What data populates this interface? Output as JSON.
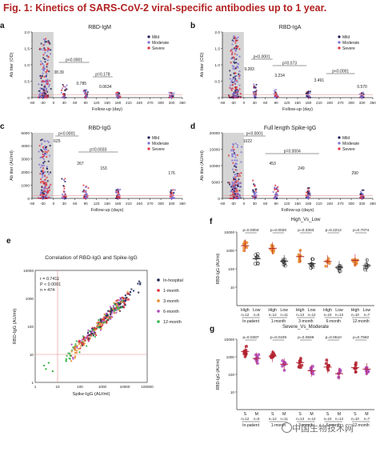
{
  "figure_title": "Fig. 1: Kinetics of SARS-CoV-2 viral-specific antibodies up to 1 year.",
  "watermark": "中国生物技术网",
  "colors": {
    "mild": "#1c1c55",
    "moderate": "#7e6fd6",
    "severe": "#e0303a",
    "shade": "#d5d5d5",
    "accent": "#d85a4a",
    "orange": "#e8882c",
    "purple": "#b24bbd",
    "darkred": "#b3202e",
    "navy": "#222a55",
    "cutoff": "#e88888"
  },
  "chart_data": [
    {
      "panel": "a",
      "type": "scatter",
      "title": "RBD-IgM",
      "xlabel": "Follow-up (day)",
      "ylabel": "Ab titer (OD)",
      "xlim": [
        -60,
        360
      ],
      "ylim": [
        0,
        2.0
      ],
      "xticks": [
        -60,
        -30,
        0,
        30,
        60,
        90,
        120,
        150,
        180,
        210,
        240,
        270,
        300,
        330,
        360
      ],
      "yticks": [
        0,
        0.5,
        1.0,
        1.5,
        2.0
      ],
      "ytick_labels": [
        "0",
        "0.5",
        "1.0",
        "1.5",
        "2.0"
      ],
      "legend": [
        "Mild",
        "Moderate",
        "Severe"
      ],
      "legend_position": "top-right",
      "p_values": [
        "p<0.0001",
        "p=0.178"
      ],
      "annotations": [
        "38.39",
        "0.785",
        "0.0634"
      ]
    },
    {
      "panel": "b",
      "type": "scatter",
      "title": "RBD-IgA",
      "xlabel": "Follow-up (day)",
      "ylabel": "Ab titer (OD)",
      "xlim": [
        -60,
        360
      ],
      "ylim": [
        0,
        2.0
      ],
      "xticks": [
        -60,
        -30,
        0,
        30,
        60,
        90,
        120,
        150,
        180,
        210,
        240,
        270,
        300,
        330,
        360
      ],
      "yticks": [
        0,
        0.5,
        1.0,
        1.5,
        2.0
      ],
      "ytick_labels": [
        "0",
        "0.5",
        "1.0",
        "1.5",
        "2.0"
      ],
      "legend": [
        "Mild",
        "Moderate",
        "Severe"
      ],
      "legend_position": "top-right",
      "p_values": [
        "p<0.0001",
        "p=0.073",
        "p<0.0001"
      ],
      "annotations": [
        "9.283",
        "3.234",
        "3.491",
        "0.570"
      ]
    },
    {
      "panel": "c",
      "type": "scatter",
      "title": "RBD-IgG",
      "xlabel": "Follow-up (days)",
      "ylabel": "Ab titer (AU/ml)",
      "xlim": [
        -60,
        360
      ],
      "ylim": [
        0,
        5000
      ],
      "xticks": [
        -60,
        -30,
        0,
        30,
        60,
        90,
        120,
        150,
        180,
        210,
        240,
        270,
        300,
        330,
        360
      ],
      "yticks": [
        0,
        1000,
        2000,
        3000,
        4000,
        5000
      ],
      "ytick_labels": [
        "0",
        "1000",
        "2000",
        "3000",
        "4000",
        "5000"
      ],
      "legend": [
        "Mild",
        "Moderate",
        "Severe"
      ],
      "legend_position": "top-right",
      "p_values": [
        "p<0.0001",
        "p=0.0033"
      ],
      "annotations": [
        "625",
        "267",
        "153",
        "176"
      ]
    },
    {
      "panel": "d",
      "type": "scatter",
      "title": "Full length Spike-IgG",
      "xlabel": "Follow-up (days)",
      "ylabel": "Ab titer (AU/ml)",
      "xlim": [
        -60,
        360
      ],
      "ylim": [
        0,
        20000
      ],
      "xticks": [
        -60,
        -30,
        0,
        30,
        60,
        90,
        120,
        150,
        180,
        210,
        240,
        270,
        300,
        330,
        360
      ],
      "yticks": [
        0,
        5000,
        10000,
        15000,
        20000
      ],
      "ytick_labels": [
        "0",
        "5000",
        "10000",
        "15000",
        "20000"
      ],
      "legend": [
        "Mild",
        "Moderate",
        "Severe"
      ],
      "legend_position": "top-right",
      "p_values": [
        "p<0.0001",
        "p=0.0004"
      ],
      "annotations": [
        "1022",
        "453",
        "249",
        "290"
      ]
    },
    {
      "panel": "e",
      "type": "scatter",
      "title": "Correlation of RBD-IgG and Spike-IgG",
      "xlabel": "Spike-IgG (AU/ml)",
      "ylabel": "RBD-IgG (AU/ml)",
      "log_scale": true,
      "xlim": [
        1,
        100000
      ],
      "ylim": [
        1,
        10000
      ],
      "x_tick_labels": [
        "1",
        "10",
        "100",
        "1000",
        "10000",
        "100000"
      ],
      "y_tick_labels": [
        "1",
        "10",
        "100",
        "1000",
        "10000"
      ],
      "stats": [
        "r = 0.7411",
        "P < 0.0001",
        "n = 474"
      ],
      "legend": [
        "In-hospital",
        "1-month",
        "3-month",
        "6-month",
        "12-month"
      ],
      "legend_position": "right"
    },
    {
      "panel": "f",
      "type": "scatter",
      "title": "High_Vs_Low",
      "ylabel": "RBD-IgG (AU/ml)",
      "log_scale": true,
      "ylim": [
        1,
        10000
      ],
      "y_tick_labels": [
        "1",
        "10",
        "100",
        "1000",
        "10000"
      ],
      "groups": [
        {
          "timepoint": "In-patient",
          "labels": [
            "High",
            "Low"
          ],
          "n": [
            "n=12",
            "n=5"
          ],
          "medians": [
            1800,
            350
          ],
          "p": "p=0.0004"
        },
        {
          "timepoint": "1-month",
          "labels": [
            "High",
            "Low"
          ],
          "n": [
            "n=12",
            "n=11"
          ],
          "medians": [
            1300,
            260
          ],
          "p": "p=0.0020"
        },
        {
          "timepoint": "3-month",
          "labels": [
            "High",
            "Low"
          ],
          "n": [
            "n=13",
            "n=12"
          ],
          "medians": [
            460,
            190
          ],
          "p": "p=0.3363"
        },
        {
          "timepoint": "6-month",
          "labels": [
            "High",
            "Low"
          ],
          "n": [
            "n=10",
            "n=13"
          ],
          "medians": [
            250,
            120
          ],
          "p": "p=0.2212"
        },
        {
          "timepoint": "12-month",
          "labels": [
            "High",
            "Low"
          ],
          "n": [
            "n=10",
            "n=7"
          ],
          "medians": [
            290,
            150
          ],
          "p": "p=0.7074"
        }
      ]
    },
    {
      "panel": "g",
      "type": "scatter",
      "title": "Severe_Vs_Moderate",
      "ylabel": "RBD-IgG (AU/ml)",
      "log_scale": true,
      "ylim": [
        1,
        10000
      ],
      "y_tick_labels": [
        "1",
        "10",
        "100",
        "1000",
        "10000"
      ],
      "groups": [
        {
          "timepoint": "In-patient",
          "labels": [
            "S",
            "M"
          ],
          "n": [
            "n=12",
            "n=5"
          ],
          "medians": [
            2000,
            800
          ],
          "p": "p=0.0287"
        },
        {
          "timepoint": "1-month",
          "labels": [
            "S",
            "M"
          ],
          "n": [
            "n=12",
            "n=11"
          ],
          "medians": [
            1100,
            380
          ],
          "p": "p=0.0109"
        },
        {
          "timepoint": "3-month",
          "labels": [
            "S",
            "M"
          ],
          "n": [
            "n=13",
            "n=12"
          ],
          "medians": [
            470,
            160
          ],
          "p": "p=0.0569"
        },
        {
          "timepoint": "6-month",
          "labels": [
            "S",
            "M"
          ],
          "n": [
            "n=10",
            "n=13"
          ],
          "medians": [
            260,
            110
          ],
          "p": "p=0.0510"
        },
        {
          "timepoint": "12-month",
          "labels": [
            "S",
            "M"
          ],
          "n": [
            "n=10",
            "n=7"
          ],
          "medians": [
            240,
            200
          ],
          "p": "p=0.7582"
        }
      ]
    }
  ]
}
